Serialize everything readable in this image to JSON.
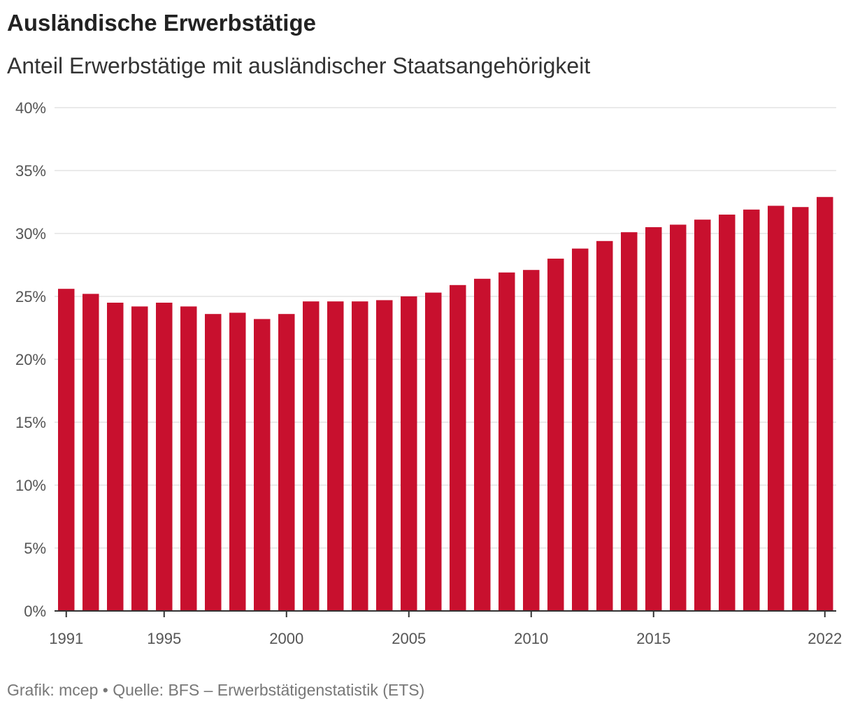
{
  "title": "Ausländische Erwerbstätige",
  "subtitle": "Anteil Erwerbstätige mit ausländischer Staatsangehörigkeit",
  "footer": "Grafik: mcep • Quelle: BFS – Erwerbstätigenstatistik (ETS)",
  "colors": {
    "bar": "#c8102e",
    "grid": "#e3e3e3",
    "axis": "#333333",
    "tick_text": "#555555"
  },
  "chart_data": {
    "type": "bar",
    "title": "Ausländische Erwerbstätige",
    "subtitle": "Anteil Erwerbstätige mit ausländischer Staatsangehörigkeit",
    "xlabel": "",
    "ylabel": "",
    "ylim": [
      0,
      40
    ],
    "yticks": [
      0,
      5,
      10,
      15,
      20,
      25,
      30,
      35,
      40
    ],
    "ytick_labels": [
      "0%",
      "5%",
      "10%",
      "15%",
      "20%",
      "25%",
      "30%",
      "35%",
      "40%"
    ],
    "xtick_labels": [
      "1991",
      "1995",
      "2000",
      "2005",
      "2010",
      "2015",
      "2022"
    ],
    "grid": true,
    "categories": [
      "1991",
      "1992",
      "1993",
      "1994",
      "1995",
      "1996",
      "1997",
      "1998",
      "1999",
      "2000",
      "2001",
      "2002",
      "2003",
      "2004",
      "2005",
      "2006",
      "2007",
      "2008",
      "2009",
      "2010",
      "2011",
      "2012",
      "2013",
      "2014",
      "2015",
      "2016",
      "2017",
      "2018",
      "2019",
      "2020",
      "2021",
      "2022"
    ],
    "values": [
      25.6,
      25.2,
      24.5,
      24.2,
      24.5,
      24.2,
      23.6,
      23.7,
      23.2,
      23.6,
      24.6,
      24.6,
      24.6,
      24.7,
      25.0,
      25.3,
      25.9,
      26.4,
      26.9,
      27.1,
      28.0,
      28.8,
      29.4,
      30.1,
      30.5,
      30.7,
      31.1,
      31.5,
      31.9,
      32.2,
      32.1,
      32.9
    ]
  }
}
